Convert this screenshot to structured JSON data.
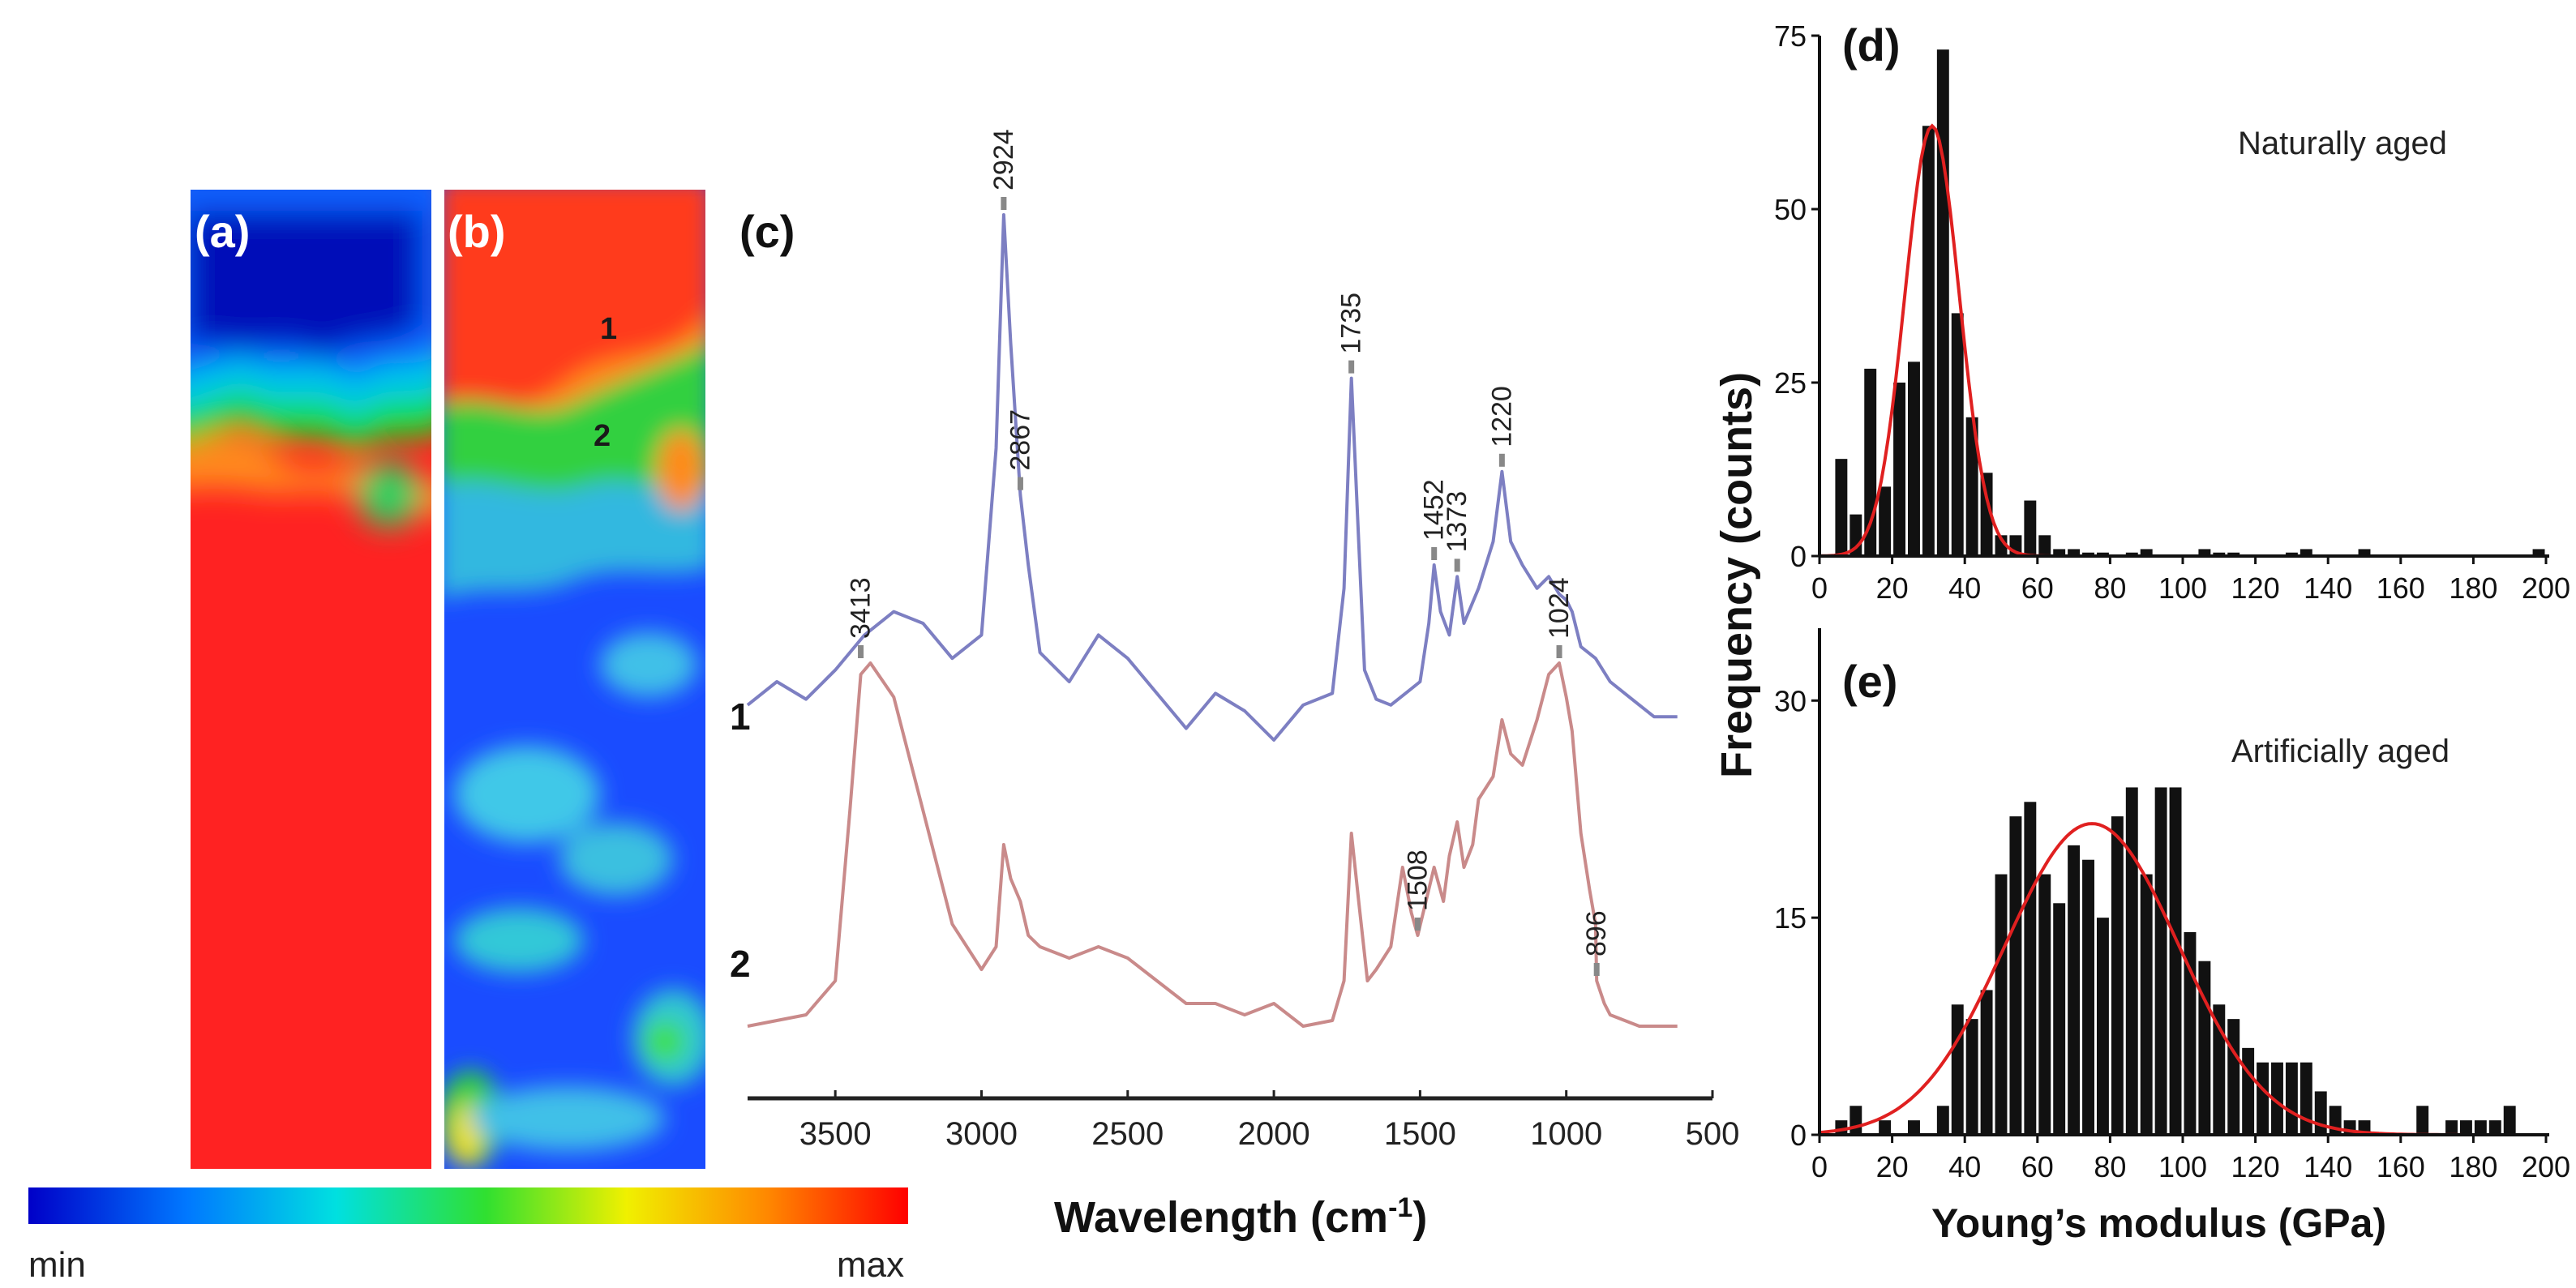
{
  "colorbar": {
    "min_label": "min",
    "max_label": "max"
  },
  "map_a": {
    "label": "(a)"
  },
  "map_b": {
    "label": "(b)",
    "point_1": "1",
    "point_2": "2"
  },
  "colors": {
    "spectrum_1": "#7d7fc2",
    "spectrum_2": "#c98a8a",
    "fit_curve": "#e02020",
    "bar": "#111111"
  },
  "chart_data": [
    {
      "id": "c",
      "type": "line",
      "panel_label": "(c)",
      "title": "",
      "xlabel": "Wavelength (cm",
      "xlabel_sup": "-1",
      "xlabel_close": ")",
      "ylabel": "",
      "xlim": [
        3800,
        500
      ],
      "x_ticks": [
        "3500",
        "3000",
        "2500",
        "2000",
        "1500",
        "1000",
        "500"
      ],
      "x_tick_values": [
        3500,
        3000,
        2500,
        2000,
        1500,
        1000,
        500
      ],
      "series": [
        {
          "name": "1",
          "label": "1",
          "x": [
            3800,
            3700,
            3600,
            3500,
            3400,
            3300,
            3200,
            3100,
            3000,
            2950,
            2924,
            2900,
            2867,
            2840,
            2800,
            2700,
            2600,
            2500,
            2400,
            2300,
            2200,
            2100,
            2000,
            1900,
            1800,
            1760,
            1735,
            1710,
            1690,
            1650,
            1600,
            1550,
            1500,
            1470,
            1452,
            1430,
            1400,
            1373,
            1350,
            1300,
            1250,
            1220,
            1190,
            1150,
            1100,
            1060,
            1024,
            1000,
            980,
            950,
            900,
            850,
            800,
            750,
            700,
            650,
            620
          ],
          "y": [
            0.16,
            0.2,
            0.17,
            0.22,
            0.28,
            0.32,
            0.3,
            0.24,
            0.28,
            0.6,
            1.0,
            0.78,
            0.52,
            0.4,
            0.25,
            0.2,
            0.28,
            0.24,
            0.18,
            0.12,
            0.18,
            0.15,
            0.1,
            0.16,
            0.18,
            0.36,
            0.72,
            0.44,
            0.22,
            0.17,
            0.16,
            0.18,
            0.2,
            0.3,
            0.4,
            0.32,
            0.28,
            0.38,
            0.3,
            0.36,
            0.44,
            0.56,
            0.44,
            0.4,
            0.36,
            0.38,
            0.35,
            0.34,
            0.32,
            0.26,
            0.24,
            0.2,
            0.18,
            0.16,
            0.14,
            0.14,
            0.14
          ]
        },
        {
          "name": "2",
          "label": "2",
          "x": [
            3800,
            3700,
            3600,
            3500,
            3450,
            3413,
            3380,
            3300,
            3200,
            3100,
            3000,
            2950,
            2924,
            2900,
            2867,
            2840,
            2800,
            2700,
            2600,
            2500,
            2400,
            2300,
            2200,
            2100,
            2000,
            1900,
            1800,
            1760,
            1735,
            1710,
            1680,
            1650,
            1600,
            1560,
            1530,
            1508,
            1480,
            1452,
            1420,
            1400,
            1373,
            1350,
            1320,
            1300,
            1250,
            1220,
            1190,
            1150,
            1100,
            1060,
            1024,
            1000,
            980,
            950,
            920,
            900,
            896,
            870,
            850,
            800,
            750,
            700,
            650,
            620
          ],
          "y": [
            0.02,
            0.03,
            0.04,
            0.1,
            0.4,
            0.64,
            0.66,
            0.6,
            0.4,
            0.2,
            0.12,
            0.16,
            0.34,
            0.28,
            0.24,
            0.18,
            0.16,
            0.14,
            0.16,
            0.14,
            0.1,
            0.06,
            0.06,
            0.04,
            0.06,
            0.02,
            0.03,
            0.1,
            0.36,
            0.24,
            0.1,
            0.12,
            0.16,
            0.3,
            0.22,
            0.18,
            0.24,
            0.3,
            0.24,
            0.32,
            0.38,
            0.3,
            0.34,
            0.42,
            0.46,
            0.56,
            0.5,
            0.48,
            0.56,
            0.64,
            0.66,
            0.6,
            0.54,
            0.36,
            0.26,
            0.2,
            0.1,
            0.06,
            0.04,
            0.03,
            0.02,
            0.02,
            0.02,
            0.02
          ]
        }
      ],
      "annotations": [
        {
          "text": "3413",
          "x": 3413,
          "series": "2",
          "y": 0.66
        },
        {
          "text": "2924",
          "x": 2924,
          "series": "1",
          "y": 1.0
        },
        {
          "text": "2867",
          "x": 2867,
          "series": "1",
          "y": 0.52
        },
        {
          "text": "1735",
          "x": 1735,
          "series": "1",
          "y": 0.72
        },
        {
          "text": "1452",
          "x": 1452,
          "series": "1",
          "y": 0.4
        },
        {
          "text": "1373",
          "x": 1373,
          "series": "1",
          "y": 0.38
        },
        {
          "text": "1220",
          "x": 1220,
          "series": "1",
          "y": 0.56
        },
        {
          "text": "1024",
          "x": 1024,
          "series": "2",
          "y": 0.66
        },
        {
          "text": "1508",
          "x": 1508,
          "series": "2",
          "y": 0.18
        },
        {
          "text": "896",
          "x": 896,
          "series": "2",
          "y": 0.1
        }
      ]
    },
    {
      "id": "d",
      "type": "bar",
      "panel_label": "(d)",
      "title": "Naturally aged",
      "xlabel": "",
      "ylabel": "Frequency (counts)",
      "xlim": [
        0,
        200
      ],
      "ylim": [
        0,
        75
      ],
      "x_ticks": [
        "0",
        "20",
        "40",
        "60",
        "80",
        "100",
        "120",
        "140",
        "160",
        "180",
        "200"
      ],
      "x_tick_values": [
        0,
        20,
        40,
        60,
        80,
        100,
        120,
        140,
        160,
        180,
        200
      ],
      "y_ticks": [
        "0",
        "25",
        "50",
        "75"
      ],
      "y_tick_values": [
        0,
        25,
        50,
        75
      ],
      "bin_width": 4,
      "bin_starts": [
        4,
        8,
        12,
        16,
        20,
        24,
        28,
        32,
        36,
        40,
        44,
        48,
        52,
        56,
        60,
        64,
        68,
        72,
        76,
        84,
        88,
        104,
        108,
        112,
        128,
        132,
        148,
        196
      ],
      "values": [
        14,
        6,
        27,
        10,
        25,
        28,
        62,
        73,
        35,
        20,
        12,
        3,
        3,
        8,
        3,
        1,
        1,
        0.5,
        0.5,
        0.5,
        1,
        1,
        0.5,
        0.5,
        0.5,
        1,
        1,
        1
      ],
      "fit_curve": {
        "type": "gaussian",
        "mean": 31,
        "sd": 7.5,
        "peak": 62
      }
    },
    {
      "id": "e",
      "type": "bar",
      "panel_label": "(e)",
      "title": "Artificially aged",
      "xlabel": "Young’s modulus (GPa)",
      "ylabel": "",
      "xlim": [
        0,
        200
      ],
      "ylim": [
        0,
        35
      ],
      "x_ticks": [
        "0",
        "20",
        "40",
        "60",
        "80",
        "100",
        "120",
        "140",
        "160",
        "180",
        "200"
      ],
      "x_tick_values": [
        0,
        20,
        40,
        60,
        80,
        100,
        120,
        140,
        160,
        180,
        200
      ],
      "y_ticks": [
        "0",
        "15",
        "30"
      ],
      "y_tick_values": [
        0,
        15,
        30
      ],
      "bin_width": 4,
      "bin_starts": [
        4,
        8,
        16,
        24,
        32,
        36,
        40,
        44,
        48,
        52,
        56,
        60,
        64,
        68,
        72,
        76,
        80,
        84,
        88,
        92,
        96,
        100,
        104,
        108,
        112,
        116,
        120,
        124,
        128,
        132,
        136,
        140,
        144,
        148,
        164,
        172,
        176,
        180,
        184,
        188
      ],
      "values": [
        1,
        2,
        1,
        1,
        2,
        9,
        8,
        10,
        18,
        22,
        23,
        18,
        16,
        20,
        19,
        15,
        22,
        24,
        18,
        24,
        24,
        14,
        12,
        9,
        8,
        6,
        5,
        5,
        5,
        5,
        3,
        2,
        1,
        1,
        2,
        1,
        1,
        1,
        1,
        2
      ],
      "fit_curve": {
        "type": "gaussian",
        "mean": 75,
        "sd": 24,
        "peak": 21.5
      }
    }
  ]
}
